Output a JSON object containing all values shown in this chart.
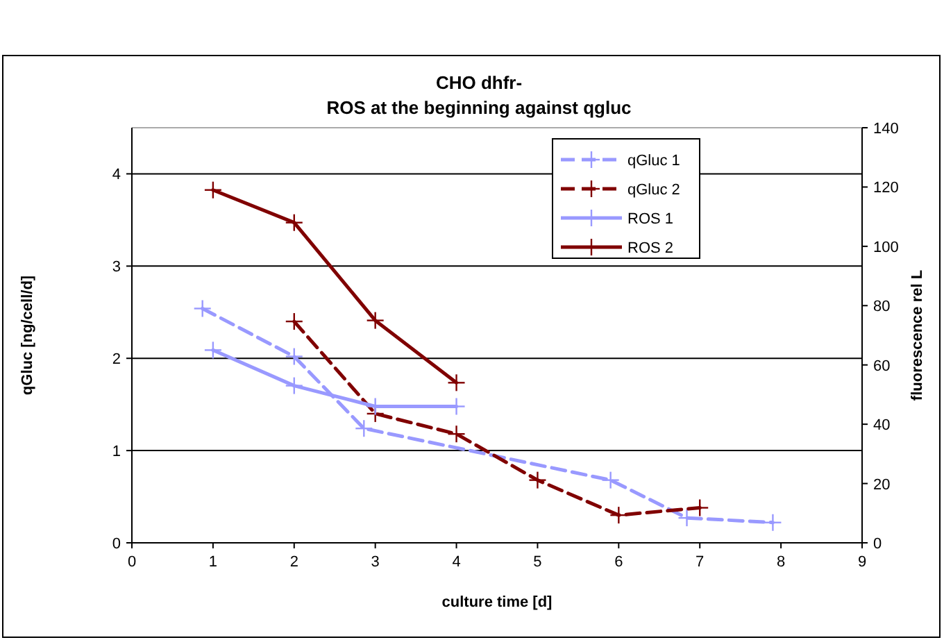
{
  "chart_data": {
    "type": "line",
    "title": "CHO dhfr-\nROS at the beginning against qgluc",
    "xlabel": "culture time [d]",
    "ylabel": "qGluc [ng/cell/d]",
    "y2label": "fluorescence rel L",
    "xlim": [
      0,
      9
    ],
    "xticks": [
      0,
      1,
      2,
      3,
      4,
      5,
      6,
      7,
      8,
      9
    ],
    "ylim": [
      0,
      4.5
    ],
    "yticks": [
      0,
      1,
      2,
      3,
      4
    ],
    "y2lim": [
      0,
      140
    ],
    "y2ticks": [
      0,
      20,
      40,
      60,
      80,
      100,
      120,
      140
    ],
    "grid": "y",
    "legend": "top right",
    "series": [
      {
        "name": "qGluc 1",
        "color": "#9999ff",
        "marker": "cross",
        "line_style": "dashed",
        "x": [
          0.87,
          2.0,
          2.86,
          5.9,
          6.84,
          7.9
        ],
        "values": [
          2.54,
          2.02,
          1.24,
          0.68,
          0.27,
          0.22
        ]
      },
      {
        "name": "qGluc 2",
        "color": "#800000",
        "marker": "cross",
        "line_style": "dashed",
        "x": [
          2,
          3,
          4,
          5,
          6,
          7
        ],
        "values": [
          2.4,
          1.4,
          1.18,
          0.68,
          0.3,
          0.38
        ]
      },
      {
        "name": "ROS 1",
        "color": "#9999ff",
        "marker": "cross",
        "line_style": "solid",
        "axis": "y2",
        "x": [
          1,
          2,
          3,
          4
        ],
        "values": [
          65,
          53,
          46,
          46
        ]
      },
      {
        "name": "ROS 2",
        "color": "#800000",
        "marker": "cross",
        "line_style": "solid",
        "axis": "y2",
        "x": [
          1,
          2,
          3,
          4
        ],
        "values": [
          119,
          108,
          75,
          54
        ]
      }
    ]
  }
}
